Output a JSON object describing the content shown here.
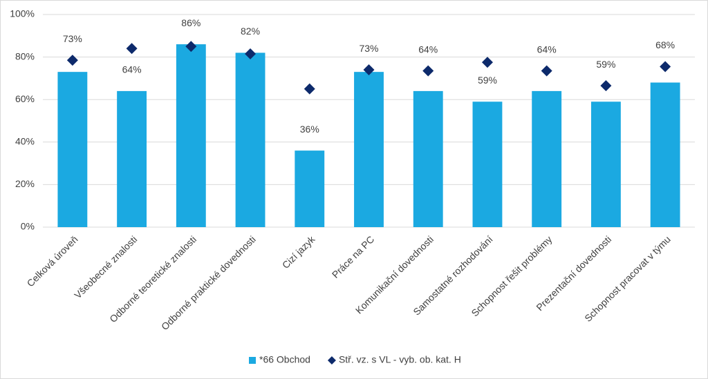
{
  "chart_data": {
    "type": "bar",
    "categories": [
      "Celková úroveň",
      "Všeobecné znalosti",
      "Odborné teoretické znalosti",
      "Odborné praktické dovednosti",
      "Cizí jazyk",
      "Práce na PC",
      "Komunikační dovednosti",
      "Samostatné rozhodování",
      "Schopnost řešit problémy",
      "Prezentační dovednosti",
      "Schopnost pracovat v týmu"
    ],
    "series": [
      {
        "name": "*66 Obchod",
        "color": "#1ba9e1",
        "type": "bar",
        "values": [
          73,
          64,
          86,
          82,
          36,
          73,
          64,
          59,
          64,
          59,
          68
        ],
        "value_labels": [
          "73%",
          "64%",
          "86%",
          "82%",
          "36%",
          "73%",
          "64%",
          "59%",
          "64%",
          "59%",
          "68%"
        ]
      },
      {
        "name": "Stř. vz. s VL - vyb. ob. kat. H",
        "color": "#0d2a6b",
        "type": "marker",
        "values": [
          78.5,
          84,
          85,
          81.5,
          65,
          74,
          73.5,
          77.5,
          73.5,
          66.5,
          75.5
        ]
      }
    ],
    "ylim": [
      0,
      100
    ],
    "yticks": [
      {
        "value": 0,
        "label": "0%"
      },
      {
        "value": 20,
        "label": "20%"
      },
      {
        "value": 40,
        "label": "40%"
      },
      {
        "value": 60,
        "label": "60%"
      },
      {
        "value": 80,
        "label": "80%"
      },
      {
        "value": 100,
        "label": "100%"
      }
    ],
    "grid": true,
    "legend": "bottom"
  }
}
